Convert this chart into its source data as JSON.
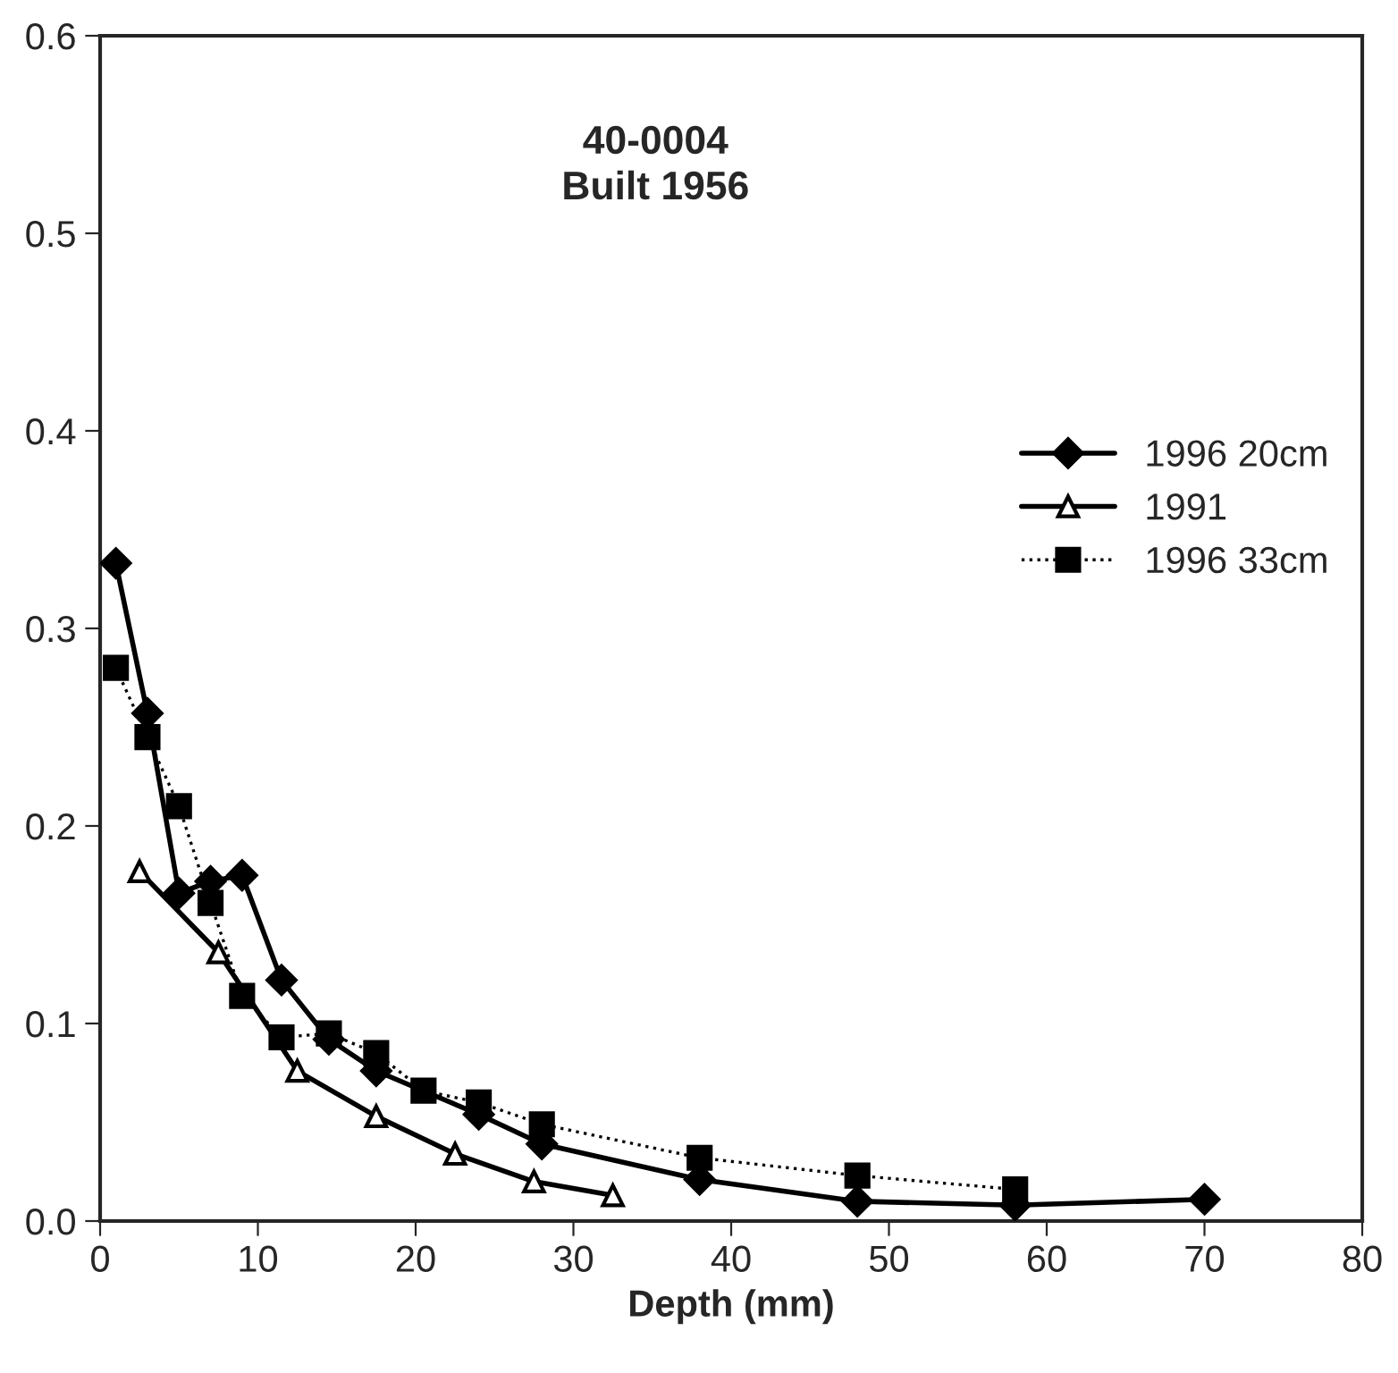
{
  "chart_data": {
    "type": "line",
    "title": "40-0004\nBuilt 1956",
    "xlabel": "Depth (mm)",
    "xlim": [
      0,
      80
    ],
    "xticks": [
      0,
      10,
      20,
      30,
      40,
      50,
      60,
      70,
      80
    ],
    "ylim": [
      0,
      0.6
    ],
    "yticks": [
      {
        "value": 0,
        "label": "0.0"
      },
      0.1,
      0.2,
      0.3,
      0.4,
      0.5,
      0.6
    ],
    "grid": false,
    "legend": "right",
    "series": [
      {
        "name": "1996 20cm",
        "color": "#000000",
        "marker": "diamond",
        "line_style": "solid",
        "x": [
          1,
          3,
          5,
          7,
          9,
          11.5,
          14.5,
          17.5,
          24,
          28,
          38,
          48,
          58,
          70
        ],
        "values": [
          0.333,
          0.257,
          0.166,
          0.172,
          0.175,
          0.122,
          0.092,
          0.076,
          0.054,
          0.039,
          0.021,
          0.01,
          0.008,
          0.011
        ]
      },
      {
        "name": "1991",
        "color": "#000000",
        "marker": "triangle",
        "line_style": "solid",
        "x": [
          2.5,
          7.5,
          12.5,
          17.5,
          22.5,
          27.5,
          32.5
        ],
        "values": [
          0.177,
          0.136,
          0.076,
          0.053,
          0.034,
          0.02,
          0.013
        ]
      },
      {
        "name": "1996 33cm",
        "color": "#000000",
        "marker": "square",
        "line_style": "dotted",
        "x": [
          1,
          3,
          5,
          7,
          9,
          11.5,
          14.5,
          17.5,
          20.5,
          24,
          28,
          38,
          48,
          58
        ],
        "values": [
          0.28,
          0.245,
          0.21,
          0.161,
          0.114,
          0.093,
          0.095,
          0.085,
          0.066,
          0.06,
          0.049,
          0.032,
          0.023,
          0.016
        ]
      }
    ]
  }
}
